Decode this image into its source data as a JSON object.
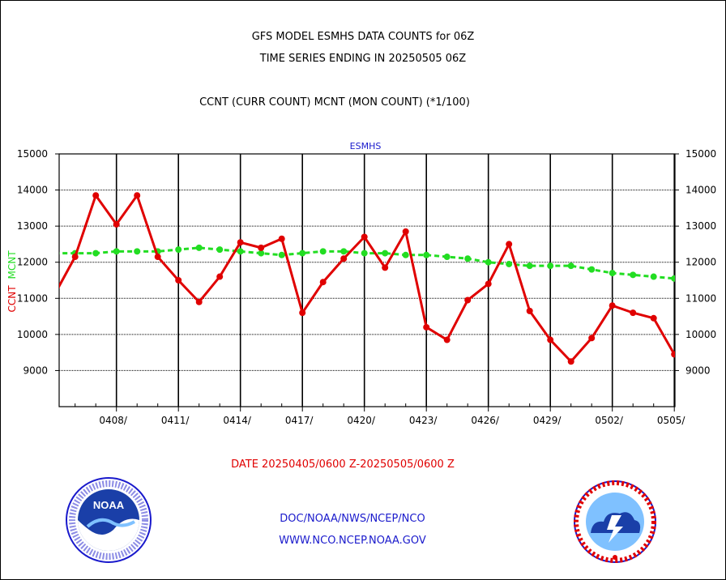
{
  "header": {
    "title_line1": "GFS MODEL ESMHS DATA COUNTS for 06Z",
    "title_line2": "TIME SERIES ENDING IN 20250505 06Z",
    "title_line3": "CCNT (CURR COUNT) MCNT (MON COUNT) (*1/100)"
  },
  "footer": {
    "date_range": "DATE 20250405/0600 Z-20250505/0600 Z",
    "org_path": "DOC/NOAA/NWS/NCEP/NCO",
    "website": "WWW.NCO.NCEP.NOAA.GOV"
  },
  "colors": {
    "ccnt": "#e00000",
    "mcnt": "#22dd22",
    "panel_title": "#1a1acc"
  },
  "chart_data": {
    "type": "line",
    "title": "ESMHS",
    "ylabel_series": [
      "CCNT",
      "MCNT"
    ],
    "ylim": [
      8000,
      15000
    ],
    "yticks": [
      9000,
      10000,
      11000,
      12000,
      13000,
      14000,
      15000
    ],
    "xticks": [
      "0408/",
      "0411/",
      "0414/",
      "0417/",
      "0420/",
      "0423/",
      "0426/",
      "0429/",
      "0502/",
      "0505/"
    ],
    "xlim": [
      "20250405",
      "20250505"
    ],
    "grid": true,
    "series": [
      {
        "name": "CCNT",
        "x": [
          "20250405",
          "20250406",
          "20250407",
          "20250408",
          "20250409",
          "20250410",
          "20250411",
          "20250412",
          "20250413",
          "20250414",
          "20250415",
          "20250416",
          "20250417",
          "20250418",
          "20250419",
          "20250420",
          "20250421",
          "20250422",
          "20250423",
          "20250424",
          "20250425",
          "20250426",
          "20250427",
          "20250428",
          "20250429",
          "20250430",
          "20250501",
          "20250502",
          "20250503",
          "20250504",
          "20250505"
        ],
        "values": [
          11100,
          12150,
          13850,
          13050,
          13850,
          12150,
          11500,
          10900,
          11600,
          12550,
          12400,
          12650,
          10600,
          11450,
          12100,
          12700,
          11850,
          12850,
          10200,
          9850,
          10950,
          11400,
          12500,
          10650,
          9850,
          9250,
          9900,
          10800,
          10600,
          10450,
          9450
        ]
      },
      {
        "name": "MCNT",
        "x": [
          "20250405",
          "20250406",
          "20250407",
          "20250408",
          "20250409",
          "20250410",
          "20250411",
          "20250412",
          "20250413",
          "20250414",
          "20250415",
          "20250416",
          "20250417",
          "20250418",
          "20250419",
          "20250420",
          "20250421",
          "20250422",
          "20250423",
          "20250424",
          "20250425",
          "20250426",
          "20250427",
          "20250428",
          "20250429",
          "20250430",
          "20250501",
          "20250502",
          "20250503",
          "20250504",
          "20250505"
        ],
        "values": [
          12250,
          12250,
          12250,
          12300,
          12300,
          12300,
          12350,
          12400,
          12350,
          12300,
          12250,
          12200,
          12250,
          12300,
          12300,
          12250,
          12250,
          12200,
          12200,
          12150,
          12100,
          12000,
          11950,
          11900,
          11900,
          11900,
          11800,
          11700,
          11650,
          11600,
          11550
        ]
      }
    ]
  }
}
